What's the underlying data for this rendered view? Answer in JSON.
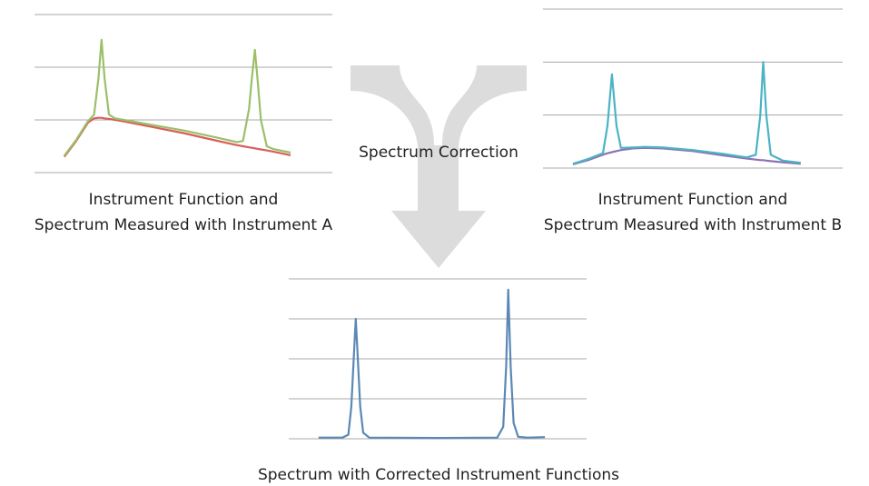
{
  "chart_data": [
    {
      "type": "line",
      "title": [
        "Instrument Function and",
        "Spectrum Measured with Instrument A"
      ],
      "x": [
        10,
        14,
        18,
        20,
        21.5,
        22.5,
        23.5,
        25,
        27,
        30,
        40,
        50,
        60,
        68,
        70,
        72,
        73,
        74,
        75,
        76,
        78,
        80,
        86
      ],
      "series": [
        {
          "color": "#d65f5a",
          "values": [
            0.3,
            0.6,
            0.95,
            1.03,
            1.04,
            1.04,
            1.03,
            1.02,
            1.0,
            0.97,
            0.86,
            0.75,
            0.62,
            0.52,
            0.5,
            0.48,
            0.47,
            0.46,
            0.45,
            0.44,
            0.42,
            0.4,
            0.33
          ]
        },
        {
          "color": "#9cbf6a",
          "values": [
            0.32,
            0.62,
            0.98,
            1.1,
            1.8,
            2.52,
            1.8,
            1.1,
            1.03,
            1.0,
            0.9,
            0.8,
            0.68,
            0.58,
            0.6,
            1.2,
            1.8,
            2.33,
            1.7,
            1.0,
            0.5,
            0.45,
            0.38
          ]
        }
      ],
      "xlim": [
        0,
        100
      ],
      "ylim": [
        0,
        3
      ],
      "yticks": [
        0,
        1,
        2,
        3
      ],
      "grid": true
    },
    {
      "type": "line",
      "title": [
        "Instrument Function and",
        "Spectrum Measured with Instrument B"
      ],
      "x": [
        10,
        15,
        20,
        21.5,
        23,
        24.5,
        26,
        30,
        34,
        40,
        50,
        60,
        68,
        71,
        72.5,
        73.5,
        74.5,
        76,
        80,
        86
      ],
      "series": [
        {
          "color": "#8d72b3",
          "values": [
            0.07,
            0.15,
            0.25,
            0.28,
            0.3,
            0.32,
            0.34,
            0.37,
            0.38,
            0.37,
            0.32,
            0.24,
            0.18,
            0.16,
            0.15,
            0.15,
            0.14,
            0.13,
            0.11,
            0.08
          ]
        },
        {
          "color": "#4bb3c4",
          "values": [
            0.08,
            0.17,
            0.28,
            0.8,
            1.77,
            0.8,
            0.38,
            0.39,
            0.4,
            0.39,
            0.34,
            0.27,
            0.2,
            0.25,
            1.0,
            2.0,
            1.0,
            0.25,
            0.14,
            0.1
          ]
        }
      ],
      "xlim": [
        0,
        100
      ],
      "ylim": [
        0,
        3
      ],
      "yticks": [
        0,
        1,
        2,
        3
      ],
      "grid": true
    },
    {
      "type": "line",
      "title": [
        "Spectrum with Corrected Instrument Functions"
      ],
      "x": [
        10,
        18,
        20,
        21,
        22,
        22.5,
        23,
        24,
        25,
        27,
        50,
        70,
        72,
        73,
        73.7,
        74.5,
        75.5,
        77,
        80,
        86
      ],
      "series": [
        {
          "color": "#5b88b5",
          "values": [
            0.03,
            0.03,
            0.1,
            0.8,
            2.3,
            3.0,
            2.3,
            0.8,
            0.15,
            0.03,
            0.02,
            0.03,
            0.3,
            1.8,
            3.73,
            1.8,
            0.4,
            0.05,
            0.03,
            0.04
          ]
        }
      ],
      "xlim": [
        0,
        100
      ],
      "ylim": [
        0,
        4
      ],
      "yticks": [
        0,
        1,
        2,
        3,
        4
      ],
      "grid": true
    }
  ],
  "annotation": "Spectrum Correction"
}
